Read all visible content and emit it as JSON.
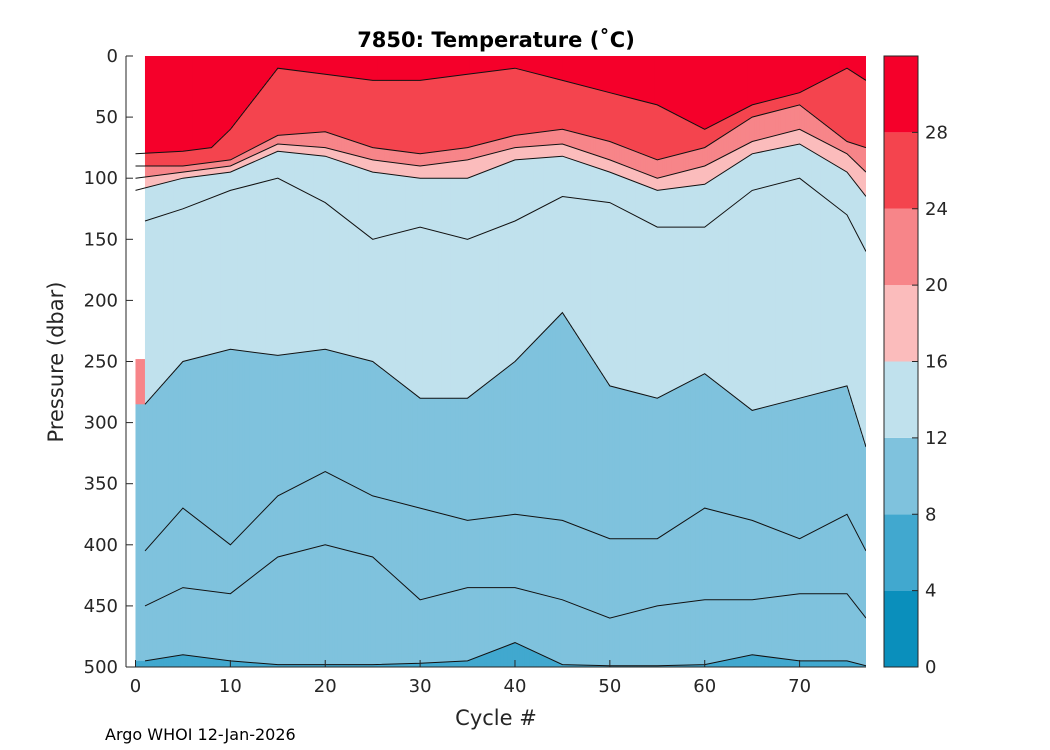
{
  "chart_data": {
    "type": "contour",
    "title": "7850:  Temperature (˚C)",
    "xlabel": "Cycle #",
    "ylabel": "Pressure (dbar)",
    "xlim": [
      -1,
      77
    ],
    "ylim": [
      0,
      500
    ],
    "y_reversed": true,
    "x_ticks": [
      0,
      10,
      20,
      30,
      40,
      50,
      60,
      70
    ],
    "y_ticks": [
      0,
      50,
      100,
      150,
      200,
      250,
      300,
      350,
      400,
      450,
      500
    ],
    "colorbar": {
      "min": 0,
      "max": 32,
      "ticks": [
        0,
        4,
        8,
        12,
        16,
        20,
        24,
        28
      ],
      "bands": [
        {
          "from": 0,
          "to": 4,
          "color": "#0a8fbc"
        },
        {
          "from": 4,
          "to": 8,
          "color": "#41a8cf"
        },
        {
          "from": 8,
          "to": 12,
          "color": "#7fc2dd"
        },
        {
          "from": 12,
          "to": 16,
          "color": "#c0e1ed"
        },
        {
          "from": 16,
          "to": 20,
          "color": "#fbbcbc"
        },
        {
          "from": 20,
          "to": 24,
          "color": "#f78589"
        },
        {
          "from": 24,
          "to": 28,
          "color": "#f4444e"
        },
        {
          "from": 28,
          "to": 32,
          "color": "#f5002a"
        }
      ]
    },
    "contour_levels": [
      {
        "level": 26,
        "x": [
          0,
          5,
          8,
          10,
          15,
          20,
          25,
          30,
          35,
          40,
          45,
          50,
          55,
          60,
          65,
          70,
          75,
          77
        ],
        "depth": [
          80,
          78,
          75,
          60,
          10,
          15,
          20,
          20,
          15,
          10,
          20,
          30,
          40,
          60,
          40,
          30,
          10,
          20
        ]
      },
      {
        "level": 22,
        "x": [
          0,
          5,
          10,
          15,
          20,
          25,
          30,
          35,
          40,
          45,
          50,
          55,
          60,
          65,
          70,
          75,
          77
        ],
        "depth": [
          90,
          90,
          85,
          65,
          62,
          75,
          80,
          75,
          65,
          60,
          70,
          85,
          75,
          50,
          40,
          70,
          75
        ]
      },
      {
        "level": 18,
        "x": [
          0,
          5,
          10,
          15,
          20,
          25,
          30,
          35,
          40,
          45,
          50,
          55,
          60,
          65,
          70,
          75,
          77
        ],
        "depth": [
          100,
          95,
          90,
          72,
          75,
          85,
          90,
          85,
          75,
          72,
          85,
          100,
          90,
          70,
          60,
          80,
          95
        ]
      },
      {
        "level": 16,
        "x": [
          0,
          5,
          10,
          15,
          20,
          25,
          30,
          35,
          40,
          45,
          50,
          55,
          60,
          65,
          70,
          75,
          77
        ],
        "depth": [
          110,
          100,
          95,
          78,
          82,
          95,
          100,
          100,
          85,
          82,
          95,
          110,
          105,
          80,
          72,
          95,
          115
        ]
      },
      {
        "level": 14,
        "x": [
          1,
          5,
          10,
          15,
          20,
          25,
          30,
          35,
          40,
          45,
          50,
          55,
          60,
          65,
          70,
          75,
          77
        ],
        "depth": [
          135,
          125,
          110,
          100,
          120,
          150,
          140,
          150,
          135,
          115,
          120,
          140,
          140,
          110,
          100,
          130,
          160
        ]
      },
      {
        "level": 12,
        "x": [
          1,
          5,
          10,
          15,
          20,
          25,
          30,
          35,
          40,
          45,
          50,
          55,
          60,
          65,
          70,
          75,
          77
        ],
        "depth": [
          285,
          250,
          240,
          245,
          240,
          250,
          280,
          280,
          250,
          210,
          270,
          280,
          260,
          290,
          280,
          270,
          320
        ]
      },
      {
        "level": 10,
        "x": [
          1,
          5,
          10,
          15,
          20,
          25,
          30,
          35,
          40,
          45,
          50,
          55,
          60,
          65,
          70,
          75,
          77
        ],
        "depth": [
          405,
          370,
          400,
          360,
          340,
          360,
          370,
          380,
          375,
          380,
          395,
          395,
          370,
          380,
          395,
          375,
          405
        ]
      },
      {
        "level": 9,
        "x": [
          1,
          5,
          10,
          15,
          20,
          25,
          30,
          35,
          40,
          45,
          50,
          55,
          60,
          65,
          70,
          75,
          77
        ],
        "depth": [
          450,
          435,
          440,
          410,
          400,
          410,
          445,
          435,
          435,
          445,
          460,
          450,
          445,
          445,
          440,
          440,
          460
        ]
      },
      {
        "level": 8,
        "x": [
          1,
          5,
          10,
          15,
          20,
          25,
          30,
          35,
          40,
          45,
          50,
          55,
          60,
          65,
          70,
          75,
          77
        ],
        "depth": [
          495,
          490,
          495,
          498,
          498,
          498,
          497,
          495,
          480,
          498,
          499,
          499,
          498,
          490,
          495,
          495,
          499
        ]
      }
    ],
    "credit": "Argo WHOI 12-Jan-2026"
  }
}
